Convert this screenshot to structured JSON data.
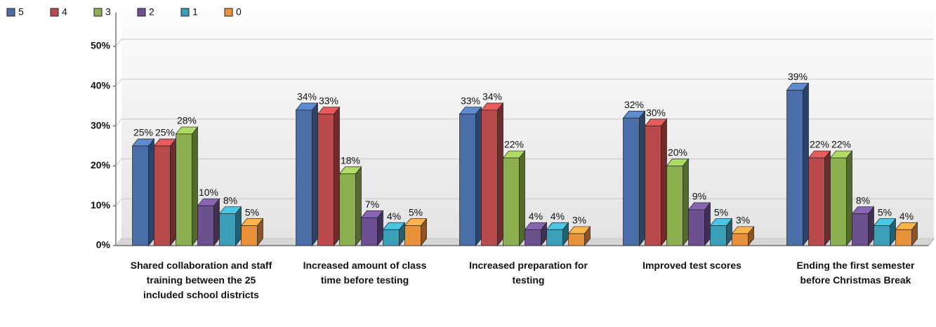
{
  "chart_data": {
    "type": "bar",
    "categories": [
      "Shared collaboration and staff training between the 25 included school districts",
      "Increased amount of class time before testing",
      "Increased preparation for testing",
      "Improved test scores",
      "Ending the first semester before Christmas Break"
    ],
    "series": [
      {
        "name": "5",
        "color": "#4a6fa8",
        "values": [
          25,
          34,
          33,
          32,
          39
        ],
        "value_labels": [
          "25%",
          "34%",
          "33%",
          "32%",
          "39%"
        ]
      },
      {
        "name": "4",
        "color": "#b9494a",
        "values": [
          25,
          33,
          34,
          30,
          22
        ],
        "value_labels": [
          "25%",
          "33%",
          "34%",
          "30%",
          "22%"
        ]
      },
      {
        "name": "3",
        "color": "#8cb04f",
        "values": [
          28,
          18,
          22,
          20,
          22
        ],
        "value_labels": [
          "28%",
          "18%",
          "22%",
          "20%",
          "22%"
        ]
      },
      {
        "name": "2",
        "color": "#6c5090",
        "values": [
          10,
          7,
          4,
          9,
          8
        ],
        "value_labels": [
          "10%",
          "7%",
          "4%",
          "9%",
          "8%"
        ]
      },
      {
        "name": "1",
        "color": "#3a9fb9",
        "values": [
          8,
          4,
          4,
          5,
          5
        ],
        "value_labels": [
          "8%",
          "4%",
          "4%",
          "5%",
          "5%"
        ]
      },
      {
        "name": "0",
        "color": "#e8903a",
        "values": [
          5,
          5,
          3,
          3,
          4
        ],
        "value_labels": [
          "5%",
          "5%",
          "3%",
          "3%",
          "4%"
        ]
      }
    ],
    "ylim": [
      0,
      55
    ],
    "yticks": [
      {
        "value": 0,
        "label": "0%"
      },
      {
        "value": 10,
        "label": "10%"
      },
      {
        "value": 20,
        "label": "20%"
      },
      {
        "value": 30,
        "label": "30%"
      },
      {
        "value": 40,
        "label": "40%"
      },
      {
        "value": 50,
        "label": "50%"
      }
    ],
    "grid": true,
    "legend": "top-left"
  }
}
